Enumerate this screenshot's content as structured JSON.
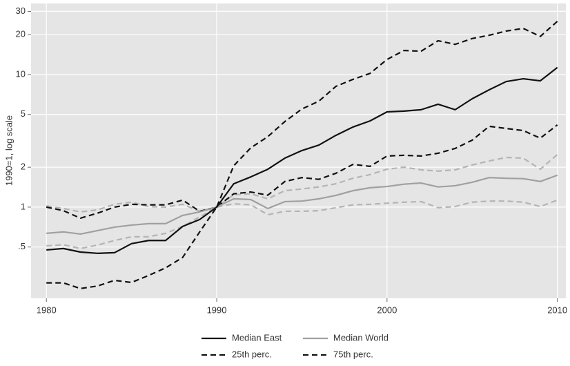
{
  "chart_data": {
    "type": "line",
    "ylabel": "1990=1, log scale",
    "yscale": "log",
    "grid": true,
    "legend": "bottom",
    "x": [
      1980,
      1981,
      1982,
      1983,
      1984,
      1985,
      1986,
      1987,
      1988,
      1989,
      1990,
      1991,
      1992,
      1993,
      1994,
      1995,
      1996,
      1997,
      1998,
      1999,
      2000,
      2001,
      2002,
      2003,
      2004,
      2005,
      2006,
      2007,
      2008,
      2009,
      2010
    ],
    "xlim": [
      1979.1,
      2010.5
    ],
    "xticks": [
      1980,
      1990,
      2000,
      2010
    ],
    "ylim": [
      0.205,
      34.4
    ],
    "yticks": [
      {
        "value": 0.5,
        "label": ".5"
      },
      1,
      2,
      5,
      10,
      20,
      30
    ],
    "series": [
      {
        "name": "Median East",
        "color": "#111111",
        "dash": false,
        "values": [
          0.475,
          0.487,
          0.458,
          0.448,
          0.453,
          0.53,
          0.56,
          0.56,
          0.715,
          0.806,
          1,
          1.5,
          1.69,
          1.93,
          2.34,
          2.67,
          2.94,
          3.48,
          4.02,
          4.47,
          5.23,
          5.3,
          5.43,
          5.97,
          5.43,
          6.57,
          7.68,
          8.86,
          9.3,
          8.97,
          11.3
        ]
      },
      {
        "name": "Median World",
        "color": "#a0a0a0",
        "dash": false,
        "values": [
          0.634,
          0.65,
          0.626,
          0.665,
          0.706,
          0.732,
          0.75,
          0.75,
          0.866,
          0.92,
          1,
          1.155,
          1.14,
          0.976,
          1.1,
          1.11,
          1.155,
          1.226,
          1.33,
          1.4,
          1.43,
          1.49,
          1.52,
          1.42,
          1.45,
          1.54,
          1.67,
          1.65,
          1.64,
          1.56,
          1.74
        ]
      },
      {
        "name": "25th perc.",
        "color": "#111111",
        "dash": true,
        "values": [
          0.268,
          0.268,
          0.243,
          0.254,
          0.28,
          0.27,
          0.305,
          0.348,
          0.417,
          0.65,
          1,
          1.26,
          1.3,
          1.23,
          1.56,
          1.67,
          1.62,
          1.8,
          2.1,
          2.03,
          2.43,
          2.46,
          2.43,
          2.55,
          2.77,
          3.2,
          4.07,
          3.92,
          3.78,
          3.31,
          4.17
        ]
      },
      {
        "name": "75th perc.",
        "color": "#111111",
        "dash": true,
        "values": [
          1.0,
          0.94,
          0.825,
          0.9,
          1.0,
          1.05,
          1.04,
          1.04,
          1.13,
          0.93,
          1,
          2.05,
          2.8,
          3.4,
          4.42,
          5.5,
          6.3,
          8.15,
          9.2,
          10.2,
          13.0,
          15.2,
          15.0,
          18.0,
          16.9,
          18.7,
          19.8,
          21.3,
          22.3,
          19.4,
          25.2
        ]
      },
      {
        "color": "#b4b4b4",
        "dash": true,
        "values": [
          1.02,
          0.976,
          0.92,
          0.953,
          1.05,
          1.09,
          1.01,
          1.0,
          1.05,
          0.93,
          1,
          1.24,
          1.26,
          1.155,
          1.33,
          1.37,
          1.42,
          1.5,
          1.65,
          1.76,
          1.93,
          2.0,
          1.91,
          1.87,
          1.91,
          2.08,
          2.23,
          2.37,
          2.34,
          1.93,
          2.49
        ]
      },
      {
        "color": "#b4b4b4",
        "dash": true,
        "values": [
          0.51,
          0.52,
          0.487,
          0.517,
          0.56,
          0.597,
          0.597,
          0.634,
          0.715,
          0.845,
          1,
          1.06,
          1.04,
          0.876,
          0.93,
          0.93,
          0.94,
          0.99,
          1.04,
          1.05,
          1.07,
          1.09,
          1.1,
          0.99,
          1.01,
          1.09,
          1.11,
          1.11,
          1.09,
          1.01,
          1.13
        ]
      }
    ]
  }
}
